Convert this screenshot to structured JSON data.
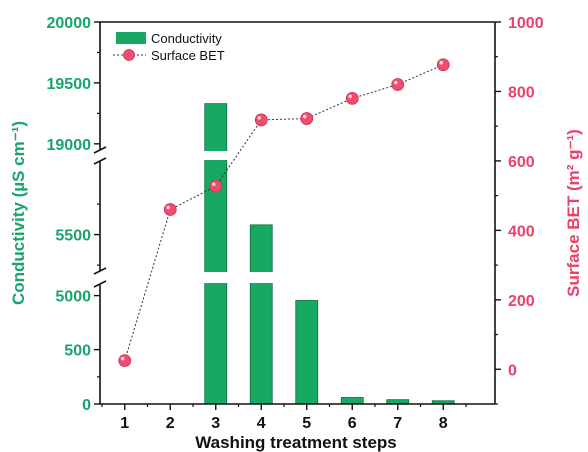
{
  "colors": {
    "left_axis": "#1aa36a",
    "right_axis": "#e8416a",
    "bar": "#17a862",
    "line": "#333333",
    "marker": "#ee4d6f"
  },
  "chart_data": {
    "type": "bar+line",
    "xlabel": "Washing treatment steps",
    "x": [
      1,
      2,
      3,
      4,
      5,
      6,
      7,
      8
    ],
    "left_axis": {
      "label": "Conductivity (µS cm⁻¹)",
      "tick_labels": [
        "0",
        "500",
        "5000",
        "5500",
        "19000",
        "19500",
        "20000"
      ],
      "broken": true
    },
    "right_axis": {
      "label": "Surface BET (m² g⁻¹)",
      "tick_labels": [
        "0",
        "200",
        "400",
        "600",
        "800",
        "1000"
      ],
      "ylim": [
        -100,
        1000
      ]
    },
    "series": [
      {
        "name": "Conductivity",
        "type": "bar",
        "axis": "left",
        "values": [
          0,
          0,
          19330,
          5580,
          4960,
          60,
          40,
          30
        ]
      },
      {
        "name": "Surface BET",
        "type": "line",
        "axis": "right",
        "values": [
          25,
          460,
          527,
          718,
          722,
          780,
          820,
          877
        ]
      }
    ],
    "legend": {
      "placement": "top-left",
      "entries": [
        "Conductivity",
        "Surface BET"
      ]
    }
  }
}
